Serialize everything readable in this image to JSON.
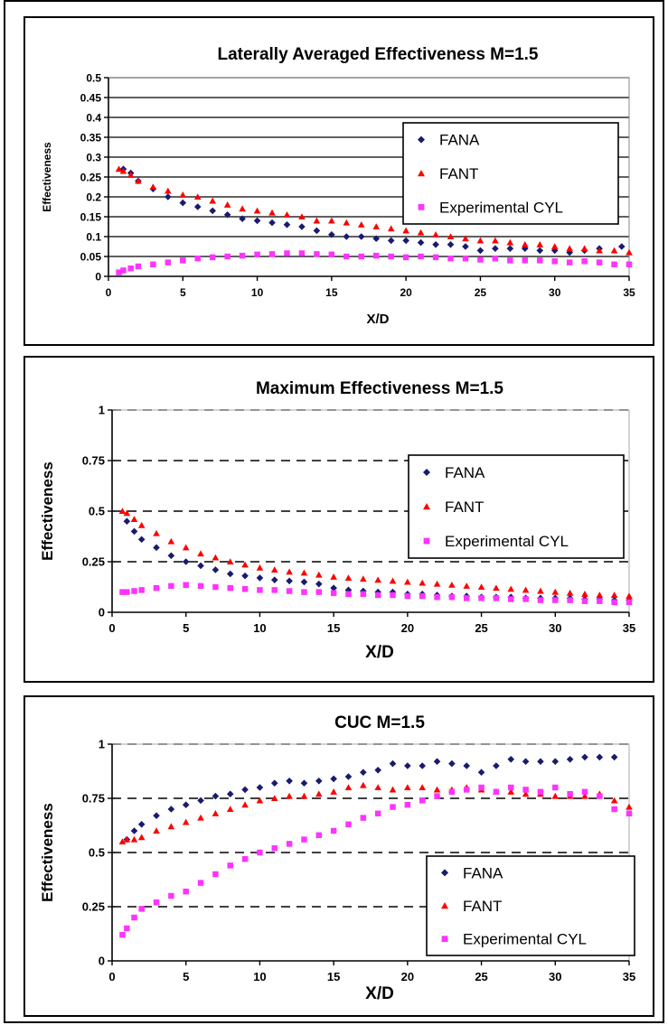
{
  "chart_data": [
    {
      "type": "scatter",
      "title": "Laterally Averaged Effectiveness  M=1.5",
      "xlabel": "X/D",
      "ylabel": "Effectiveness",
      "xlim": [
        0,
        35
      ],
      "ylim": [
        0,
        0.5
      ],
      "x_ticks": [
        "0",
        "5",
        "10",
        "15",
        "20",
        "25",
        "30",
        "35"
      ],
      "y_ticks": [
        "0",
        "0.05",
        "0.1",
        "0.15",
        "0.2",
        "0.25",
        "0.3",
        "0.35",
        "0.4",
        "0.45",
        "0.5"
      ],
      "grid": "solid",
      "legend_position": "right",
      "series": [
        {
          "name": "FANA",
          "color": "#1a1a6e",
          "marker": "diamond",
          "x": [
            1,
            1.5,
            2,
            3,
            4,
            5,
            6,
            7,
            8,
            9,
            10,
            11,
            12,
            13,
            14,
            15,
            16,
            17,
            18,
            19,
            20,
            21,
            22,
            23,
            24,
            25,
            26,
            27,
            28,
            29,
            30,
            31,
            32,
            33,
            34.5
          ],
          "y": [
            0.27,
            0.26,
            0.24,
            0.22,
            0.2,
            0.185,
            0.175,
            0.165,
            0.155,
            0.145,
            0.14,
            0.135,
            0.13,
            0.125,
            0.115,
            0.105,
            0.1,
            0.1,
            0.095,
            0.09,
            0.09,
            0.085,
            0.08,
            0.08,
            0.075,
            0.065,
            0.07,
            0.07,
            0.07,
            0.065,
            0.065,
            0.06,
            0.065,
            0.07,
            0.075
          ]
        },
        {
          "name": "FANT",
          "color": "#ff0000",
          "marker": "triangle",
          "x": [
            0.7,
            1,
            1.5,
            2,
            3,
            4,
            5,
            6,
            7,
            8,
            9,
            10,
            11,
            12,
            13,
            14,
            15,
            16,
            17,
            18,
            19,
            20,
            21,
            22,
            23,
            24,
            25,
            26,
            27,
            28,
            29,
            30,
            31,
            32,
            33,
            34,
            35
          ],
          "y": [
            0.27,
            0.265,
            0.255,
            0.24,
            0.225,
            0.215,
            0.205,
            0.2,
            0.19,
            0.18,
            0.17,
            0.165,
            0.16,
            0.155,
            0.15,
            0.14,
            0.14,
            0.135,
            0.13,
            0.125,
            0.12,
            0.115,
            0.11,
            0.105,
            0.1,
            0.095,
            0.09,
            0.09,
            0.085,
            0.08,
            0.08,
            0.075,
            0.07,
            0.07,
            0.065,
            0.065,
            0.06
          ]
        },
        {
          "name": "Experimental CYL",
          "color": "#ff33ff",
          "marker": "square",
          "x": [
            0.7,
            1,
            1.5,
            2,
            3,
            4,
            5,
            6,
            7,
            8,
            9,
            10,
            11,
            12,
            13,
            14,
            15,
            16,
            17,
            18,
            19,
            20,
            21,
            22,
            23,
            24,
            25,
            26,
            27,
            28,
            29,
            30,
            31,
            32,
            33,
            34,
            35
          ],
          "y": [
            0.01,
            0.015,
            0.02,
            0.025,
            0.03,
            0.035,
            0.04,
            0.045,
            0.048,
            0.05,
            0.052,
            0.055,
            0.056,
            0.058,
            0.058,
            0.056,
            0.055,
            0.05,
            0.05,
            0.052,
            0.05,
            0.048,
            0.05,
            0.048,
            0.045,
            0.045,
            0.042,
            0.045,
            0.04,
            0.04,
            0.04,
            0.038,
            0.035,
            0.038,
            0.035,
            0.03,
            0.03
          ]
        }
      ]
    },
    {
      "type": "scatter",
      "title": "Maximum Effectiveness   M=1.5",
      "xlabel": "X/D",
      "ylabel": "Effectiveness",
      "xlim": [
        0,
        35
      ],
      "ylim": [
        0,
        1
      ],
      "x_ticks": [
        "0",
        "5",
        "10",
        "15",
        "20",
        "25",
        "30",
        "35"
      ],
      "y_ticks": [
        "0",
        "0.25",
        "0.5",
        "0.75",
        "1"
      ],
      "grid": "dashed",
      "legend_position": "right",
      "series": [
        {
          "name": "FANA",
          "color": "#1a1a6e",
          "marker": "diamond",
          "x": [
            1,
            1.5,
            2,
            3,
            4,
            5,
            6,
            7,
            8,
            9,
            10,
            11,
            12,
            13,
            14,
            15,
            16,
            17,
            18,
            19,
            20,
            21,
            22,
            23,
            24,
            25,
            26,
            27,
            28,
            29,
            30,
            31,
            32,
            33,
            34,
            35
          ],
          "y": [
            0.45,
            0.4,
            0.36,
            0.32,
            0.28,
            0.25,
            0.23,
            0.21,
            0.19,
            0.18,
            0.17,
            0.16,
            0.155,
            0.15,
            0.14,
            0.12,
            0.11,
            0.105,
            0.1,
            0.1,
            0.09,
            0.09,
            0.085,
            0.08,
            0.08,
            0.075,
            0.075,
            0.075,
            0.07,
            0.07,
            0.07,
            0.07,
            0.065,
            0.065,
            0.06,
            0.06
          ]
        },
        {
          "name": "FANT",
          "color": "#ff0000",
          "marker": "triangle",
          "x": [
            0.7,
            1,
            1.5,
            2,
            3,
            4,
            5,
            6,
            7,
            8,
            9,
            10,
            11,
            12,
            13,
            14,
            15,
            16,
            17,
            18,
            19,
            20,
            21,
            22,
            23,
            24,
            25,
            26,
            27,
            28,
            29,
            30,
            31,
            32,
            33,
            34,
            35
          ],
          "y": [
            0.5,
            0.49,
            0.46,
            0.43,
            0.39,
            0.35,
            0.32,
            0.29,
            0.27,
            0.25,
            0.235,
            0.22,
            0.21,
            0.2,
            0.195,
            0.185,
            0.175,
            0.17,
            0.165,
            0.16,
            0.155,
            0.15,
            0.145,
            0.14,
            0.135,
            0.13,
            0.125,
            0.12,
            0.115,
            0.11,
            0.105,
            0.1,
            0.095,
            0.09,
            0.085,
            0.085,
            0.08
          ]
        },
        {
          "name": "Experimental CYL",
          "color": "#ff33ff",
          "marker": "square",
          "x": [
            0.7,
            1,
            1.5,
            2,
            3,
            4,
            5,
            6,
            7,
            8,
            9,
            10,
            11,
            12,
            13,
            14,
            15,
            16,
            17,
            18,
            19,
            20,
            21,
            22,
            23,
            24,
            25,
            26,
            27,
            28,
            29,
            30,
            31,
            32,
            33,
            34,
            35
          ],
          "y": [
            0.1,
            0.1,
            0.105,
            0.11,
            0.12,
            0.13,
            0.135,
            0.13,
            0.125,
            0.12,
            0.115,
            0.11,
            0.11,
            0.105,
            0.1,
            0.1,
            0.095,
            0.09,
            0.09,
            0.085,
            0.085,
            0.08,
            0.08,
            0.075,
            0.075,
            0.07,
            0.07,
            0.07,
            0.065,
            0.065,
            0.06,
            0.06,
            0.06,
            0.055,
            0.055,
            0.05,
            0.05
          ]
        }
      ]
    },
    {
      "type": "scatter",
      "title": "CUC  M=1.5",
      "xlabel": "X/D",
      "ylabel": "Effectiveness",
      "xlim": [
        0,
        35
      ],
      "ylim": [
        0,
        1
      ],
      "x_ticks": [
        "0",
        "5",
        "10",
        "15",
        "20",
        "25",
        "30",
        "35"
      ],
      "y_ticks": [
        "0",
        "0.25",
        "0.5",
        "0.75",
        "1"
      ],
      "grid": "dashed",
      "legend_position": "bottom-right",
      "series": [
        {
          "name": "FANA",
          "color": "#1a1a6e",
          "marker": "diamond",
          "x": [
            1,
            1.5,
            2,
            3,
            4,
            5,
            6,
            7,
            8,
            9,
            10,
            11,
            12,
            13,
            14,
            15,
            16,
            17,
            18,
            19,
            20,
            21,
            22,
            23,
            24,
            25,
            26,
            27,
            28,
            29,
            30,
            31,
            32,
            33,
            34
          ],
          "y": [
            0.56,
            0.6,
            0.63,
            0.67,
            0.7,
            0.72,
            0.74,
            0.76,
            0.77,
            0.79,
            0.8,
            0.82,
            0.83,
            0.82,
            0.83,
            0.84,
            0.85,
            0.87,
            0.88,
            0.91,
            0.9,
            0.9,
            0.92,
            0.91,
            0.9,
            0.87,
            0.9,
            0.93,
            0.92,
            0.92,
            0.92,
            0.93,
            0.94,
            0.94,
            0.94
          ]
        },
        {
          "name": "FANT",
          "color": "#ff0000",
          "marker": "triangle",
          "x": [
            0.7,
            1,
            1.5,
            2,
            3,
            4,
            5,
            6,
            7,
            8,
            9,
            10,
            11,
            12,
            13,
            14,
            15,
            16,
            17,
            18,
            19,
            20,
            21,
            22,
            23,
            24,
            25,
            26,
            27,
            28,
            29,
            30,
            31,
            32,
            33,
            34,
            35
          ],
          "y": [
            0.55,
            0.56,
            0.56,
            0.57,
            0.6,
            0.62,
            0.64,
            0.66,
            0.68,
            0.7,
            0.72,
            0.74,
            0.75,
            0.76,
            0.76,
            0.77,
            0.78,
            0.8,
            0.81,
            0.8,
            0.79,
            0.8,
            0.8,
            0.79,
            0.79,
            0.8,
            0.79,
            0.78,
            0.78,
            0.77,
            0.77,
            0.76,
            0.76,
            0.76,
            0.77,
            0.74,
            0.71
          ]
        },
        {
          "name": "Experimental CYL",
          "color": "#ff33ff",
          "marker": "square",
          "x": [
            0.7,
            1,
            1.5,
            2,
            3,
            4,
            5,
            6,
            7,
            8,
            9,
            10,
            11,
            12,
            13,
            14,
            15,
            16,
            17,
            18,
            19,
            20,
            21,
            22,
            23,
            24,
            25,
            26,
            27,
            28,
            29,
            30,
            31,
            32,
            33,
            34,
            35
          ],
          "y": [
            0.12,
            0.15,
            0.2,
            0.24,
            0.27,
            0.3,
            0.32,
            0.36,
            0.4,
            0.44,
            0.47,
            0.5,
            0.52,
            0.54,
            0.56,
            0.58,
            0.6,
            0.63,
            0.66,
            0.68,
            0.71,
            0.72,
            0.74,
            0.76,
            0.78,
            0.79,
            0.8,
            0.78,
            0.8,
            0.79,
            0.78,
            0.8,
            0.77,
            0.78,
            0.76,
            0.7,
            0.68
          ]
        }
      ]
    }
  ]
}
